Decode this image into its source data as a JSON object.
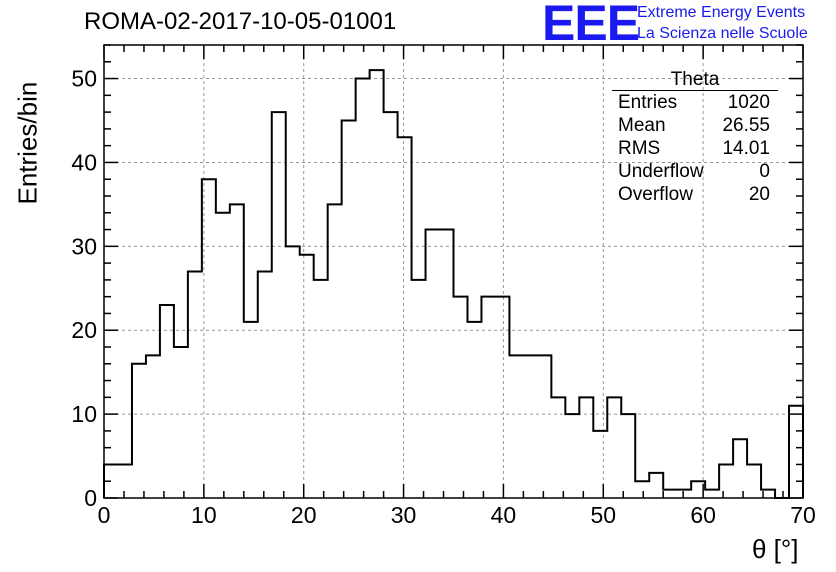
{
  "chart_data": {
    "type": "histogram",
    "title": "ROMA-02-2017-10-05-01001",
    "xlabel": "θ [°]",
    "ylabel": "Entries/bin",
    "xlim": [
      0,
      70
    ],
    "ylim": [
      0,
      54
    ],
    "bin_width": 1.4,
    "grid": true,
    "x_ticks": [
      "0",
      "10",
      "20",
      "30",
      "40",
      "50",
      "60",
      "70"
    ],
    "y_ticks": [
      "0",
      "10",
      "20",
      "30",
      "40",
      "50"
    ],
    "values": [
      4,
      4,
      16,
      17,
      23,
      18,
      27,
      38,
      34,
      35,
      21,
      27,
      46,
      30,
      29,
      26,
      35,
      45,
      50,
      51,
      46,
      43,
      26,
      32,
      32,
      24,
      21,
      24,
      24,
      17,
      17,
      17,
      12,
      10,
      12,
      8,
      12,
      10,
      2,
      3,
      1,
      1,
      2,
      1,
      4,
      7,
      4,
      1,
      0,
      11
    ],
    "stats": {
      "name": "Theta",
      "rows": [
        {
          "label": "Entries",
          "value": "1020"
        },
        {
          "label": "Mean",
          "value": "26.55"
        },
        {
          "label": "RMS",
          "value": "14.01"
        },
        {
          "label": "Underflow",
          "value": "0"
        },
        {
          "label": "Overflow",
          "value": "20"
        }
      ]
    }
  },
  "logo": {
    "mark": "EEE",
    "line1": "Extreme Energy Events",
    "line2": "La Scienza nelle Scuole",
    "color": "#1a1af0"
  }
}
